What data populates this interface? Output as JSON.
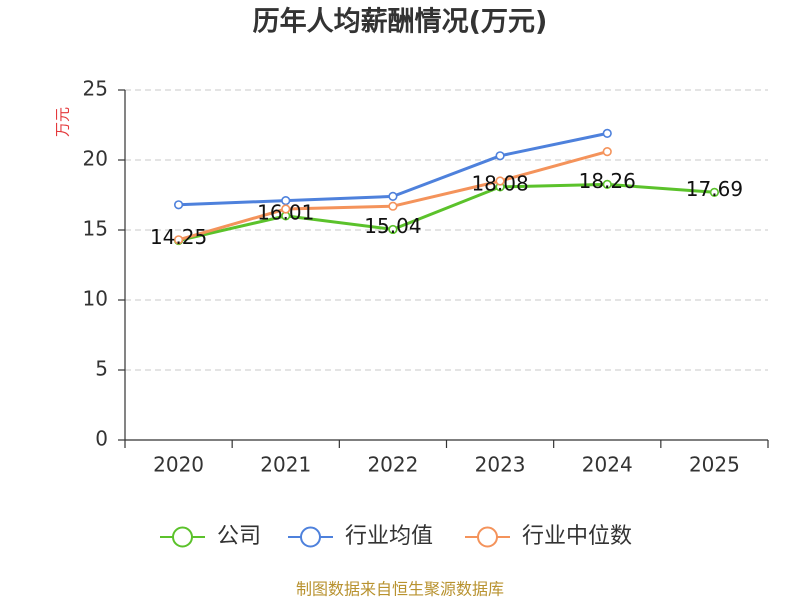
{
  "footer": "制图数据来自恒生聚源数据库",
  "chart_data": {
    "type": "line",
    "title": "历年人均薪酬情况(万元)",
    "ylabel": "万元",
    "categories": [
      "2020",
      "2021",
      "2022",
      "2023",
      "2024",
      "2025"
    ],
    "ylim": [
      0,
      25
    ],
    "yticks": [
      0,
      5,
      10,
      15,
      20,
      25
    ],
    "grid": true,
    "grid_style": "dashed",
    "legend_position": "bottom",
    "colors": {
      "title": "#333333",
      "ylabel": "#e4393c",
      "footer": "#b8922f",
      "axis": "#333333",
      "grid": "#c8c8c8"
    },
    "series": [
      {
        "name": "公司",
        "color": "#5bc22b",
        "show_labels": true,
        "values": [
          14.25,
          16.01,
          15.04,
          18.08,
          18.26,
          17.69
        ]
      },
      {
        "name": "行业均值",
        "color": "#4e81dc",
        "show_labels": false,
        "values": [
          16.8,
          17.1,
          17.4,
          20.3,
          21.9,
          null
        ]
      },
      {
        "name": "行业中位数",
        "color": "#f4935b",
        "show_labels": false,
        "values": [
          14.3,
          16.5,
          16.7,
          18.5,
          20.6,
          null
        ]
      }
    ]
  }
}
